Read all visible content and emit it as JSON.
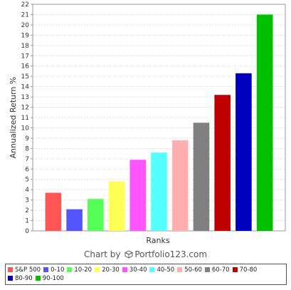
{
  "chart_data": {
    "type": "bar",
    "categories": [
      "S&P 500",
      "0-10",
      "10-20",
      "20-30",
      "30-40",
      "40-50",
      "50-60",
      "60-70",
      "70-80",
      "80-90",
      "90-100"
    ],
    "values": [
      3.7,
      2.1,
      3.1,
      4.8,
      6.9,
      7.6,
      8.8,
      10.5,
      13.2,
      15.3,
      21.0
    ],
    "colors": [
      "#ff5555",
      "#5555ff",
      "#55ff55",
      "#ffff55",
      "#ff55ff",
      "#55ffff",
      "#ffafaf",
      "#808080",
      "#c00000",
      "#0000c0",
      "#00c000"
    ],
    "title": "",
    "xlabel": "Ranks",
    "ylabel": "Annualized Return %",
    "ylim": [
      0,
      22
    ],
    "yticks": [
      0,
      1,
      2,
      3,
      4,
      5,
      6,
      7,
      8,
      9,
      10,
      11,
      12,
      13,
      14,
      15,
      16,
      17,
      18,
      19,
      20,
      21,
      22
    ],
    "grid": true,
    "legend_position": "bottom"
  },
  "credit": {
    "prefix": "Chart by",
    "brand": "Portfolio123.com"
  }
}
